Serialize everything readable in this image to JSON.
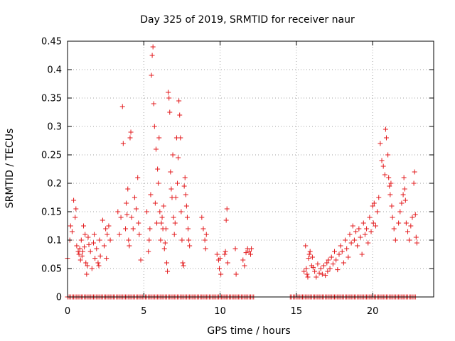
{
  "chart_data": {
    "type": "scatter",
    "title": "Day 325 of 2019, SRMTID for receiver naur",
    "xlabel": "GPS time / hours",
    "ylabel": "SRMTID / TECUs",
    "xlim": [
      0,
      24
    ],
    "ylim": [
      0,
      0.45
    ],
    "grid": true,
    "legend": "none",
    "marker": "+",
    "series_color": "#e31a1c",
    "x_ticks": [
      0,
      5,
      10,
      15,
      20
    ],
    "x_tick_labels": [
      "0",
      "5",
      "10",
      "15",
      "20"
    ],
    "y_ticks": [
      0,
      0.05,
      0.1,
      0.15,
      0.2,
      0.25,
      0.3,
      0.35,
      0.4,
      0.45
    ],
    "y_tick_labels": [
      "0",
      "0.05",
      "0.1",
      "0.15",
      "0.2",
      "0.25",
      "0.3",
      "0.35",
      "0.4",
      "0.45"
    ],
    "zero_value_x_ranges": [
      [
        0.0,
        12.2
      ],
      [
        14.6,
        22.8
      ]
    ],
    "nonzero_points": [
      [
        0.0,
        0.068
      ],
      [
        0.15,
        0.1
      ],
      [
        0.2,
        0.125
      ],
      [
        0.3,
        0.115
      ],
      [
        0.4,
        0.17
      ],
      [
        0.5,
        0.14
      ],
      [
        0.55,
        0.155
      ],
      [
        0.6,
        0.09
      ],
      [
        0.7,
        0.08
      ],
      [
        0.75,
        0.075
      ],
      [
        0.8,
        0.085
      ],
      [
        0.85,
        0.065
      ],
      [
        0.9,
        0.1
      ],
      [
        0.95,
        0.072
      ],
      [
        1.0,
        0.08
      ],
      [
        1.05,
        0.125
      ],
      [
        1.1,
        0.088
      ],
      [
        1.15,
        0.11
      ],
      [
        1.2,
        0.06
      ],
      [
        1.25,
        0.04
      ],
      [
        1.3,
        0.055
      ],
      [
        1.35,
        0.105
      ],
      [
        1.4,
        0.092
      ],
      [
        1.5,
        0.08
      ],
      [
        1.6,
        0.05
      ],
      [
        1.7,
        0.095
      ],
      [
        1.75,
        0.11
      ],
      [
        1.8,
        0.068
      ],
      [
        1.9,
        0.085
      ],
      [
        2.0,
        0.06
      ],
      [
        2.05,
        0.055
      ],
      [
        2.1,
        0.1
      ],
      [
        2.15,
        0.072
      ],
      [
        2.3,
        0.135
      ],
      [
        2.4,
        0.09
      ],
      [
        2.5,
        0.12
      ],
      [
        2.55,
        0.068
      ],
      [
        2.6,
        0.11
      ],
      [
        2.7,
        0.125
      ],
      [
        2.8,
        0.1
      ],
      [
        3.3,
        0.15
      ],
      [
        3.4,
        0.11
      ],
      [
        3.5,
        0.14
      ],
      [
        3.6,
        0.335
      ],
      [
        3.65,
        0.27
      ],
      [
        3.8,
        0.12
      ],
      [
        3.85,
        0.165
      ],
      [
        3.9,
        0.145
      ],
      [
        3.95,
        0.19
      ],
      [
        4.0,
        0.1
      ],
      [
        4.05,
        0.09
      ],
      [
        4.1,
        0.28
      ],
      [
        4.15,
        0.29
      ],
      [
        4.2,
        0.14
      ],
      [
        4.3,
        0.12
      ],
      [
        4.4,
        0.175
      ],
      [
        4.5,
        0.155
      ],
      [
        4.6,
        0.21
      ],
      [
        4.65,
        0.13
      ],
      [
        4.7,
        0.11
      ],
      [
        4.8,
        0.065
      ],
      [
        5.2,
        0.15
      ],
      [
        5.3,
        0.08
      ],
      [
        5.35,
        0.1
      ],
      [
        5.4,
        0.12
      ],
      [
        5.45,
        0.18
      ],
      [
        5.5,
        0.39
      ],
      [
        5.55,
        0.425
      ],
      [
        5.6,
        0.44
      ],
      [
        5.65,
        0.34
      ],
      [
        5.7,
        0.3
      ],
      [
        5.75,
        0.165
      ],
      [
        5.8,
        0.26
      ],
      [
        5.85,
        0.13
      ],
      [
        5.9,
        0.225
      ],
      [
        5.95,
        0.2
      ],
      [
        6.0,
        0.28
      ],
      [
        6.05,
        0.15
      ],
      [
        6.1,
        0.1
      ],
      [
        6.15,
        0.13
      ],
      [
        6.2,
        0.14
      ],
      [
        6.25,
        0.12
      ],
      [
        6.3,
        0.16
      ],
      [
        6.35,
        0.085
      ],
      [
        6.4,
        0.095
      ],
      [
        6.45,
        0.12
      ],
      [
        6.5,
        0.06
      ],
      [
        6.55,
        0.045
      ],
      [
        6.6,
        0.36
      ],
      [
        6.65,
        0.35
      ],
      [
        6.7,
        0.325
      ],
      [
        6.75,
        0.22
      ],
      [
        6.8,
        0.19
      ],
      [
        6.85,
        0.175
      ],
      [
        6.9,
        0.25
      ],
      [
        6.95,
        0.14
      ],
      [
        7.0,
        0.11
      ],
      [
        7.05,
        0.13
      ],
      [
        7.1,
        0.175
      ],
      [
        7.15,
        0.28
      ],
      [
        7.2,
        0.2
      ],
      [
        7.25,
        0.245
      ],
      [
        7.3,
        0.345
      ],
      [
        7.35,
        0.32
      ],
      [
        7.4,
        0.28
      ],
      [
        7.45,
        0.15
      ],
      [
        7.5,
        0.1
      ],
      [
        7.55,
        0.06
      ],
      [
        7.6,
        0.055
      ],
      [
        7.65,
        0.195
      ],
      [
        7.7,
        0.21
      ],
      [
        7.75,
        0.18
      ],
      [
        7.8,
        0.16
      ],
      [
        7.85,
        0.14
      ],
      [
        7.9,
        0.12
      ],
      [
        7.95,
        0.1
      ],
      [
        8.0,
        0.09
      ],
      [
        8.8,
        0.14
      ],
      [
        8.9,
        0.12
      ],
      [
        9.0,
        0.1
      ],
      [
        9.05,
        0.085
      ],
      [
        9.1,
        0.11
      ],
      [
        9.8,
        0.075
      ],
      [
        9.9,
        0.065
      ],
      [
        9.95,
        0.05
      ],
      [
        10.0,
        0.068
      ],
      [
        10.05,
        0.04
      ],
      [
        10.3,
        0.075
      ],
      [
        10.35,
        0.08
      ],
      [
        10.4,
        0.135
      ],
      [
        10.45,
        0.155
      ],
      [
        10.5,
        0.06
      ],
      [
        11.0,
        0.085
      ],
      [
        11.05,
        0.04
      ],
      [
        11.5,
        0.065
      ],
      [
        11.6,
        0.055
      ],
      [
        11.7,
        0.078
      ],
      [
        11.8,
        0.085
      ],
      [
        11.9,
        0.08
      ],
      [
        12.0,
        0.075
      ],
      [
        12.05,
        0.085
      ],
      [
        15.5,
        0.045
      ],
      [
        15.6,
        0.09
      ],
      [
        15.65,
        0.05
      ],
      [
        15.7,
        0.04
      ],
      [
        15.75,
        0.035
      ],
      [
        15.8,
        0.068
      ],
      [
        15.85,
        0.075
      ],
      [
        15.9,
        0.08
      ],
      [
        16.0,
        0.055
      ],
      [
        16.05,
        0.07
      ],
      [
        16.1,
        0.052
      ],
      [
        16.2,
        0.045
      ],
      [
        16.3,
        0.035
      ],
      [
        16.4,
        0.058
      ],
      [
        16.5,
        0.042
      ],
      [
        16.6,
        0.05
      ],
      [
        16.7,
        0.04
      ],
      [
        16.8,
        0.055
      ],
      [
        16.9,
        0.038
      ],
      [
        17.0,
        0.06
      ],
      [
        17.05,
        0.045
      ],
      [
        17.1,
        0.065
      ],
      [
        17.2,
        0.05
      ],
      [
        17.3,
        0.07
      ],
      [
        17.4,
        0.058
      ],
      [
        17.5,
        0.08
      ],
      [
        17.6,
        0.065
      ],
      [
        17.7,
        0.048
      ],
      [
        17.8,
        0.075
      ],
      [
        17.9,
        0.09
      ],
      [
        18.0,
        0.08
      ],
      [
        18.1,
        0.06
      ],
      [
        18.2,
        0.1
      ],
      [
        18.3,
        0.085
      ],
      [
        18.4,
        0.07
      ],
      [
        18.5,
        0.11
      ],
      [
        18.6,
        0.095
      ],
      [
        18.7,
        0.125
      ],
      [
        18.8,
        0.1
      ],
      [
        18.9,
        0.115
      ],
      [
        19.0,
        0.09
      ],
      [
        19.1,
        0.12
      ],
      [
        19.2,
        0.105
      ],
      [
        19.3,
        0.075
      ],
      [
        19.4,
        0.13
      ],
      [
        19.5,
        0.11
      ],
      [
        19.6,
        0.12
      ],
      [
        19.7,
        0.095
      ],
      [
        19.8,
        0.14
      ],
      [
        19.9,
        0.115
      ],
      [
        20.0,
        0.16
      ],
      [
        20.05,
        0.13
      ],
      [
        20.1,
        0.165
      ],
      [
        20.2,
        0.125
      ],
      [
        20.3,
        0.15
      ],
      [
        20.4,
        0.175
      ],
      [
        20.5,
        0.27
      ],
      [
        20.6,
        0.24
      ],
      [
        20.7,
        0.23
      ],
      [
        20.8,
        0.215
      ],
      [
        20.85,
        0.295
      ],
      [
        20.9,
        0.28
      ],
      [
        21.0,
        0.25
      ],
      [
        21.05,
        0.21
      ],
      [
        21.1,
        0.195
      ],
      [
        21.15,
        0.18
      ],
      [
        21.2,
        0.2
      ],
      [
        21.25,
        0.16
      ],
      [
        21.3,
        0.14
      ],
      [
        21.4,
        0.12
      ],
      [
        21.5,
        0.1
      ],
      [
        21.7,
        0.13
      ],
      [
        21.8,
        0.15
      ],
      [
        21.9,
        0.165
      ],
      [
        22.0,
        0.18
      ],
      [
        22.05,
        0.21
      ],
      [
        22.1,
        0.19
      ],
      [
        22.15,
        0.17
      ],
      [
        22.2,
        0.13
      ],
      [
        22.3,
        0.115
      ],
      [
        22.4,
        0.1
      ],
      [
        22.5,
        0.125
      ],
      [
        22.6,
        0.14
      ],
      [
        22.7,
        0.2
      ],
      [
        22.75,
        0.22
      ],
      [
        22.8,
        0.145
      ],
      [
        22.85,
        0.105
      ],
      [
        22.9,
        0.095
      ]
    ]
  }
}
